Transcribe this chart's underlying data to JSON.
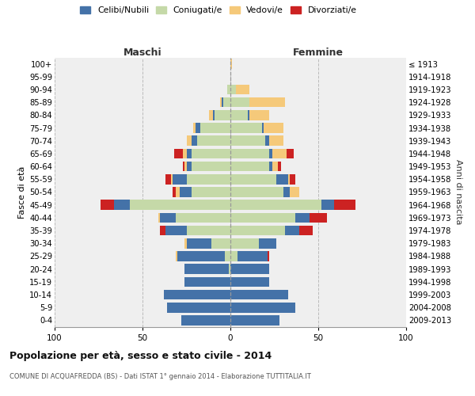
{
  "age_groups": [
    "0-4",
    "5-9",
    "10-14",
    "15-19",
    "20-24",
    "25-29",
    "30-34",
    "35-39",
    "40-44",
    "45-49",
    "50-54",
    "55-59",
    "60-64",
    "65-69",
    "70-74",
    "75-79",
    "80-84",
    "85-89",
    "90-94",
    "95-99",
    "100+"
  ],
  "birth_years": [
    "2009-2013",
    "2004-2008",
    "1999-2003",
    "1994-1998",
    "1989-1993",
    "1984-1988",
    "1979-1983",
    "1974-1978",
    "1969-1973",
    "1964-1968",
    "1959-1963",
    "1954-1958",
    "1949-1953",
    "1944-1948",
    "1939-1943",
    "1934-1938",
    "1929-1933",
    "1924-1928",
    "1919-1923",
    "1914-1918",
    "≤ 1913"
  ],
  "colors": {
    "celibe": "#4472a8",
    "coniugato": "#c5d9a8",
    "vedovo": "#f5c97a",
    "divorziato": "#cc2222"
  },
  "males": {
    "celibe": [
      28,
      36,
      38,
      26,
      25,
      27,
      14,
      12,
      9,
      9,
      7,
      8,
      3,
      3,
      3,
      3,
      1,
      1,
      0,
      0,
      0
    ],
    "coniugato": [
      0,
      0,
      0,
      0,
      1,
      3,
      11,
      25,
      31,
      57,
      22,
      25,
      22,
      22,
      19,
      17,
      9,
      4,
      2,
      0,
      0
    ],
    "vedovo": [
      0,
      0,
      0,
      0,
      0,
      1,
      1,
      0,
      1,
      0,
      2,
      1,
      1,
      2,
      3,
      1,
      2,
      1,
      0,
      0,
      0
    ],
    "divorziato": [
      0,
      0,
      0,
      0,
      0,
      0,
      0,
      3,
      0,
      8,
      2,
      3,
      1,
      5,
      0,
      0,
      0,
      0,
      0,
      0,
      0
    ]
  },
  "females": {
    "nubile": [
      28,
      37,
      33,
      22,
      22,
      17,
      10,
      8,
      8,
      7,
      4,
      7,
      2,
      2,
      2,
      1,
      1,
      0,
      0,
      0,
      0
    ],
    "coniugata": [
      0,
      0,
      0,
      0,
      0,
      4,
      16,
      31,
      37,
      52,
      30,
      26,
      22,
      22,
      20,
      18,
      10,
      11,
      3,
      0,
      0
    ],
    "vedova": [
      0,
      0,
      0,
      0,
      0,
      0,
      0,
      0,
      0,
      0,
      5,
      1,
      3,
      8,
      8,
      11,
      11,
      20,
      8,
      0,
      1
    ],
    "divorziata": [
      0,
      0,
      0,
      0,
      0,
      1,
      0,
      8,
      10,
      12,
      0,
      3,
      2,
      4,
      0,
      0,
      0,
      0,
      0,
      0,
      0
    ]
  },
  "xlim": 100,
  "title": "Popolazione per età, sesso e stato civile - 2014",
  "subtitle": "COMUNE DI ACQUAFREDDA (BS) - Dati ISTAT 1° gennaio 2014 - Elaborazione TUTTITALIA.IT",
  "ylabel_left": "Fasce di età",
  "ylabel_right": "Anni di nascita",
  "label_maschi": "Maschi",
  "label_femmine": "Femmine"
}
